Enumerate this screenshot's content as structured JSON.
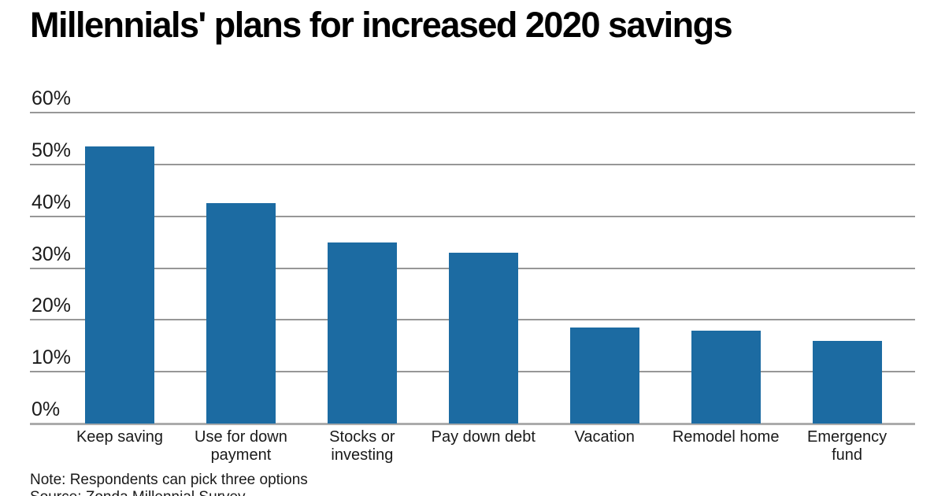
{
  "page": {
    "background": "#ffffff"
  },
  "header": {
    "title": "Millennials' plans for increased 2020 savings"
  },
  "chart_data": {
    "type": "bar",
    "title": "Millennials' plans for increased 2020 savings",
    "categories": [
      "Keep saving",
      "Use for down payment",
      "Stocks or investing",
      "Pay down debt",
      "Vacation",
      "Remodel home",
      "Emergency fund"
    ],
    "categories_lines": [
      [
        "Keep saving"
      ],
      [
        "Use for down",
        "payment"
      ],
      [
        "Stocks or",
        "investing"
      ],
      [
        "Pay down debt"
      ],
      [
        "Vacation"
      ],
      [
        "Remodel home"
      ],
      [
        "Emergency",
        "fund"
      ]
    ],
    "values": [
      53.5,
      42.5,
      35,
      33,
      18.5,
      18,
      16
    ],
    "xlabel": "",
    "ylabel": "",
    "ylim": [
      0,
      60
    ],
    "yticks": [
      60,
      50,
      40,
      30,
      20,
      10,
      0
    ],
    "ytick_suffix": "%",
    "grid": true,
    "legend": false,
    "bar_color": "#1c6ba2",
    "note": "Note: Respondents can pick three options",
    "source": "Source: Zonda Millennial Survey"
  },
  "colors": {
    "bar": "#1c6ba2",
    "gridline": "#979797",
    "baseline": "#ababab",
    "title_text": "#000000",
    "body_text": "#1a1a1a"
  }
}
